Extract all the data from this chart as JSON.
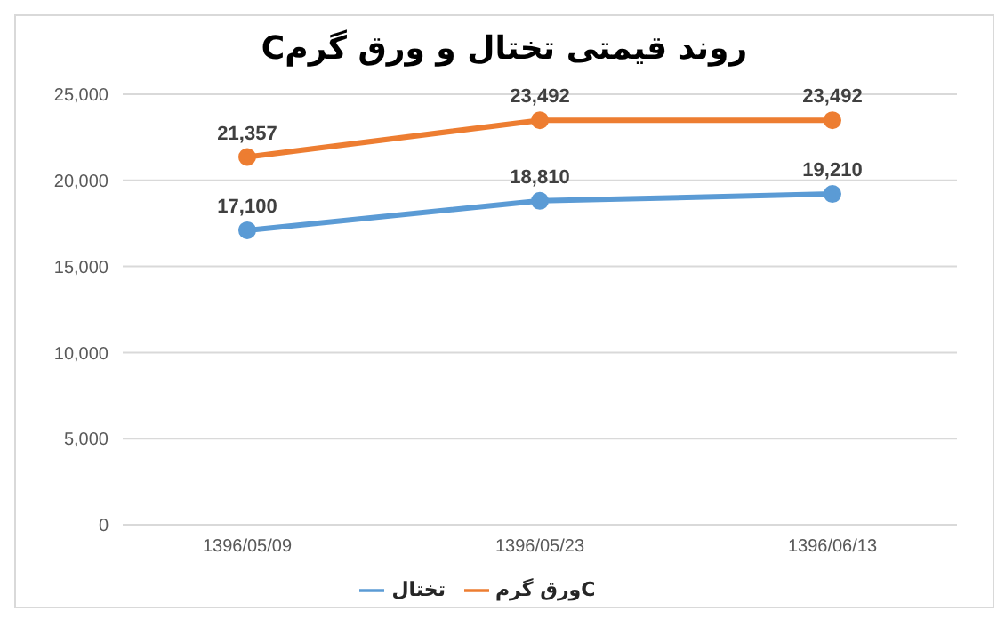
{
  "chart_data": {
    "type": "line",
    "title": "روند قیمتی تختال و ورق گرمC",
    "categories": [
      "1396/05/09",
      "1396/05/23",
      "1396/06/13"
    ],
    "series": [
      {
        "name": "تختال",
        "color": "#5b9bd5",
        "values": [
          17100,
          18810,
          19210
        ],
        "value_labels": [
          "17,100",
          "18,810",
          "19,210"
        ]
      },
      {
        "name": "ورق گرمC",
        "color": "#ed7d31",
        "values": [
          21357,
          23492,
          23492
        ],
        "value_labels": [
          "21,357",
          "23,492",
          "23,492"
        ]
      }
    ],
    "ylim": [
      0,
      25000
    ],
    "yticks": [
      0,
      {
        "value": 5000,
        "label": "5,000"
      },
      {
        "value": 10000,
        "label": "10,000"
      },
      {
        "value": 15000,
        "label": "15,000"
      },
      {
        "value": 20000,
        "label": "20,000"
      },
      {
        "value": 25000,
        "label": "25,000"
      }
    ],
    "grid": "y",
    "legend": "bottom",
    "marker": "circle"
  }
}
